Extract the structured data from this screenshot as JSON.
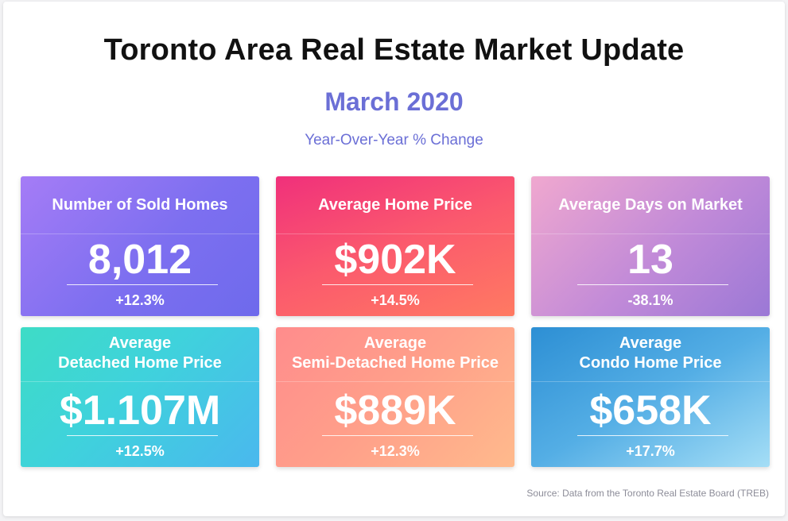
{
  "header": {
    "title": "Toronto Area Real Estate Market Update",
    "subtitle": "March 2020",
    "caption": "Year-Over-Year % Change"
  },
  "cards": [
    {
      "label": "Number of Sold Homes",
      "value": "8,012",
      "change": "+12.3%"
    },
    {
      "label": "Average Home Price",
      "value": "$902K",
      "change": "+14.5%"
    },
    {
      "label": "Average Days on Market",
      "value": "13",
      "change": "-38.1%"
    },
    {
      "label_line1": "Average",
      "label_line2": "Detached Home Price",
      "value": "$1.107M",
      "change": "+12.5%"
    },
    {
      "label_line1": "Average",
      "label_line2": "Semi-Detached Home Price",
      "value": "$889K",
      "change": "+12.3%"
    },
    {
      "label_line1": "Average",
      "label_line2": "Condo Home Price",
      "value": "$658K",
      "change": "+17.7%"
    }
  ],
  "footer": {
    "source": "Source: Data from the Toronto Real Estate Board (TREB)"
  }
}
